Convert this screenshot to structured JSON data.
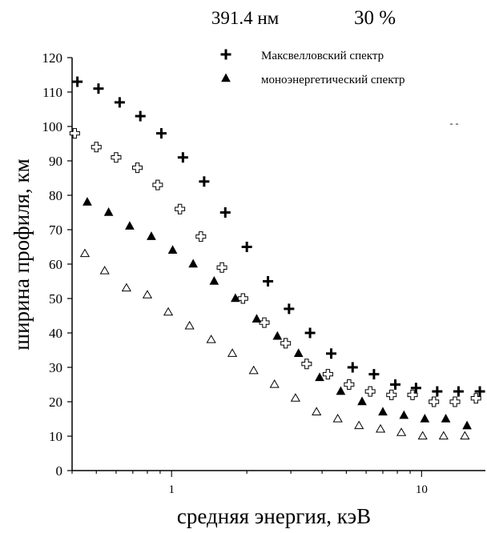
{
  "chart_data": {
    "type": "scatter",
    "title": "391.4 нм",
    "subtitle": "30 %",
    "xlabel": "средняя энергия, кэВ",
    "ylabel": "ширина профиля, км",
    "x_scale": "log",
    "xlim": [
      0.4,
      18
    ],
    "ylim": [
      0,
      120
    ],
    "x_ticks": [
      1,
      10
    ],
    "x_tick_labels": [
      "1",
      "10"
    ],
    "y_ticks": [
      0,
      10,
      20,
      30,
      40,
      50,
      60,
      70,
      80,
      90,
      100,
      110,
      120
    ],
    "y_tick_labels": [
      "0",
      "10",
      "20",
      "30",
      "40",
      "50",
      "60",
      "70",
      "80",
      "90",
      "100",
      "110",
      "120"
    ],
    "grid": false,
    "legend_position": "top-right",
    "stray_mark": "- -",
    "series": [
      {
        "name": "Максвелловский спектр",
        "marker": "filled-cross",
        "in_legend": true,
        "x": [
          0.42,
          0.51,
          0.62,
          0.75,
          0.91,
          1.11,
          1.35,
          1.64,
          2.0,
          2.43,
          2.95,
          3.58,
          4.35,
          5.3,
          6.45,
          7.85,
          9.5,
          11.55,
          14.05,
          17.1
        ],
        "y": [
          113,
          111,
          107,
          103,
          98,
          91,
          84,
          75,
          65,
          55,
          47,
          40,
          34,
          30,
          28,
          25,
          24,
          23,
          23,
          23
        ]
      },
      {
        "name": "",
        "marker": "open-cross",
        "in_legend": false,
        "x": [
          0.41,
          0.5,
          0.6,
          0.73,
          0.88,
          1.08,
          1.31,
          1.59,
          1.93,
          2.35,
          2.86,
          3.47,
          4.22,
          5.13,
          6.23,
          7.58,
          9.2,
          11.2,
          13.6,
          16.5
        ],
        "y": [
          98,
          94,
          91,
          88,
          83,
          76,
          68,
          59,
          50,
          43,
          37,
          31,
          28,
          25,
          23,
          22,
          22,
          20,
          20,
          21
        ]
      },
      {
        "name": "моноэнергетический спектр",
        "marker": "filled-triangle",
        "in_legend": true,
        "x": [
          0.46,
          0.56,
          0.68,
          0.83,
          1.01,
          1.22,
          1.48,
          1.8,
          2.19,
          2.65,
          3.22,
          3.91,
          4.75,
          5.78,
          7.0,
          8.5,
          10.3,
          12.5,
          15.2
        ],
        "y": [
          78,
          75,
          71,
          68,
          64,
          60,
          55,
          50,
          44,
          39,
          34,
          27,
          23,
          20,
          17,
          16,
          15,
          15,
          13
        ]
      },
      {
        "name": "",
        "marker": "open-triangle",
        "in_legend": false,
        "x": [
          0.45,
          0.54,
          0.66,
          0.8,
          0.97,
          1.18,
          1.44,
          1.75,
          2.13,
          2.58,
          3.13,
          3.8,
          4.62,
          5.62,
          6.85,
          8.3,
          10.1,
          12.25,
          14.9
        ],
        "y": [
          63,
          58,
          53,
          51,
          46,
          42,
          38,
          34,
          29,
          25,
          21,
          17,
          15,
          13,
          12,
          11,
          10,
          10,
          10
        ]
      }
    ]
  }
}
